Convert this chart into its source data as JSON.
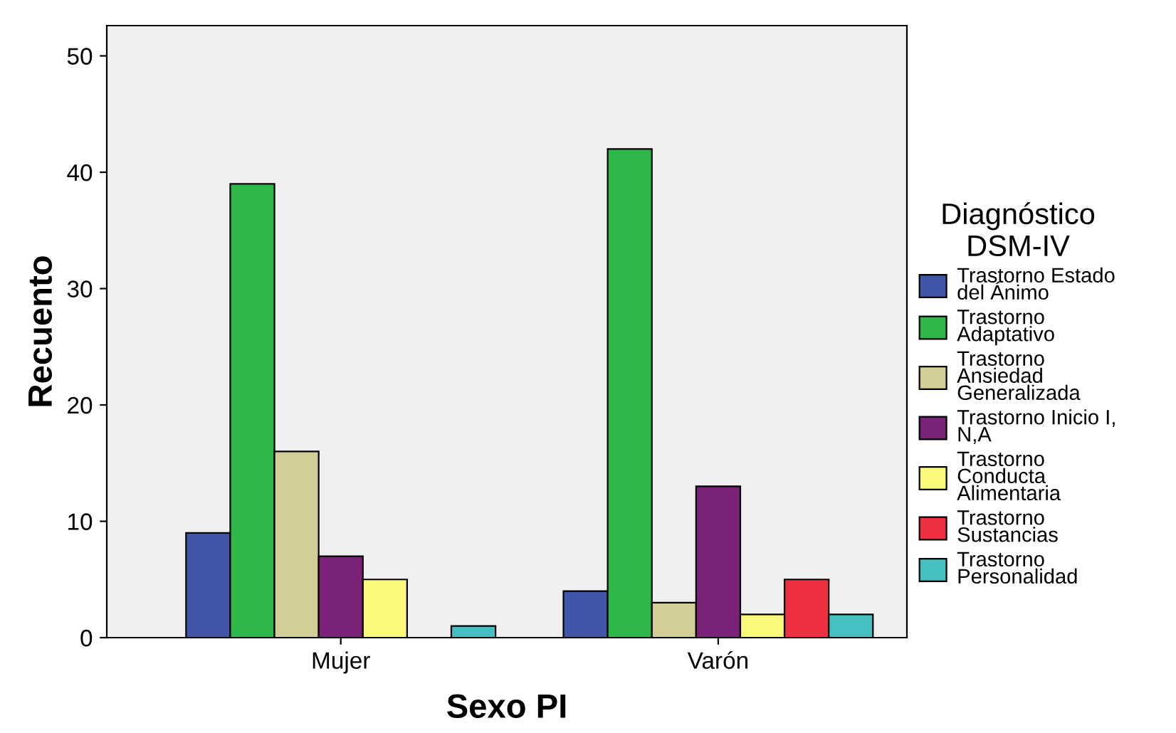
{
  "chart_data": {
    "type": "bar",
    "xlabel": "Sexo PI",
    "ylabel": "Recuento",
    "legend_title": "Diagnóstico\nDSM-IV",
    "categories": [
      "Mujer",
      "Varón"
    ],
    "series": [
      {
        "name": "Trastorno Estado\ndel Ánimo",
        "color": "#3f57a6",
        "values": [
          9,
          4
        ]
      },
      {
        "name": "Trastorno\nAdaptativo",
        "color": "#2eb84a",
        "values": [
          39,
          42
        ]
      },
      {
        "name": "Trastorno\nAnsiedad\nGeneralizada",
        "color": "#d3cd98",
        "values": [
          16,
          3
        ]
      },
      {
        "name": "Trastorno Inicio I,\nN,A",
        "color": "#7a2277",
        "values": [
          7,
          13
        ]
      },
      {
        "name": "Trastorno\nConducta\nAlimentaria",
        "color": "#fbf979",
        "values": [
          5,
          2
        ]
      },
      {
        "name": "Trastorno\nSustancias",
        "color": "#ee3040",
        "values": [
          null,
          5
        ]
      },
      {
        "name": "Trastorno\nPersonalidad",
        "color": "#45bfc0",
        "values": [
          1,
          2
        ]
      }
    ],
    "ylim": [
      0,
      52.6
    ],
    "yticks": [
      0,
      10,
      20,
      30,
      40,
      50
    ],
    "grid": false,
    "legend": "right"
  }
}
